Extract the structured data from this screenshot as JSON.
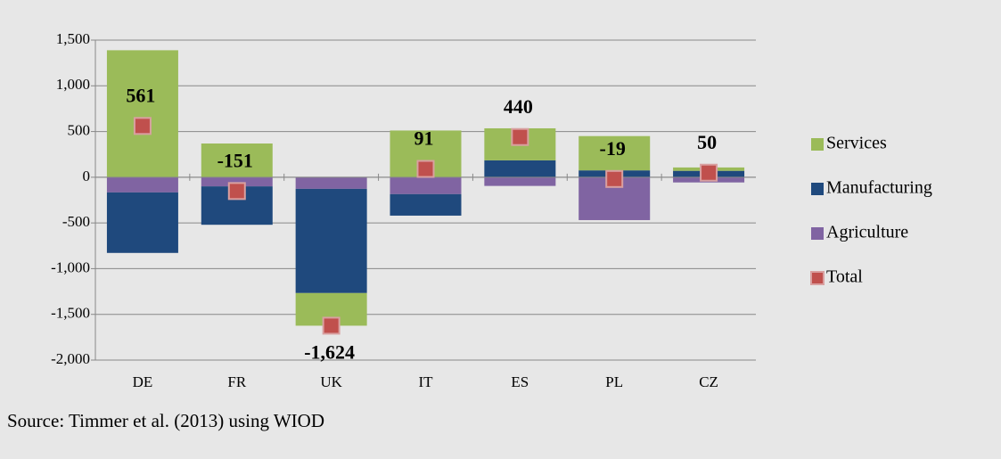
{
  "chart_data": {
    "type": "bar",
    "stacked": true,
    "categories": [
      "DE",
      "FR",
      "UK",
      "IT",
      "ES",
      "PL",
      "CZ"
    ],
    "series": [
      {
        "name": "Services",
        "color": "#9bbb59",
        "values": [
          1389,
          369,
          -357,
          511,
          350,
          375,
          37
        ]
      },
      {
        "name": "Manufacturing",
        "color": "#1f497d",
        "values": [
          -662,
          -420,
          -1140,
          -235,
          185,
          75,
          70
        ]
      },
      {
        "name": "Agriculture",
        "color": "#8064a2",
        "values": [
          -166,
          -100,
          -127,
          -185,
          -95,
          -469,
          -57
        ]
      },
      {
        "name": "Total",
        "type": "scatter",
        "color": "#c0504d",
        "values": [
          561,
          -151,
          -1624,
          91,
          440,
          -19,
          50
        ],
        "value_labels": [
          "561",
          "-151",
          "-1,624",
          "91",
          "440",
          "-19",
          "50"
        ]
      }
    ],
    "ylim": [
      -2000,
      1500
    ],
    "yticks": [
      {
        "value": -2000,
        "label": "-2,000"
      },
      {
        "value": -1500,
        "label": "-1,500"
      },
      {
        "value": -1000,
        "label": "-1,000"
      },
      -500,
      0,
      500,
      {
        "value": 1000,
        "label": "1,000"
      },
      {
        "value": 1500,
        "label": "1,500"
      }
    ],
    "grid": true,
    "legend": "right",
    "source": "Source: Timmer et al. (2013) using WIOD"
  }
}
